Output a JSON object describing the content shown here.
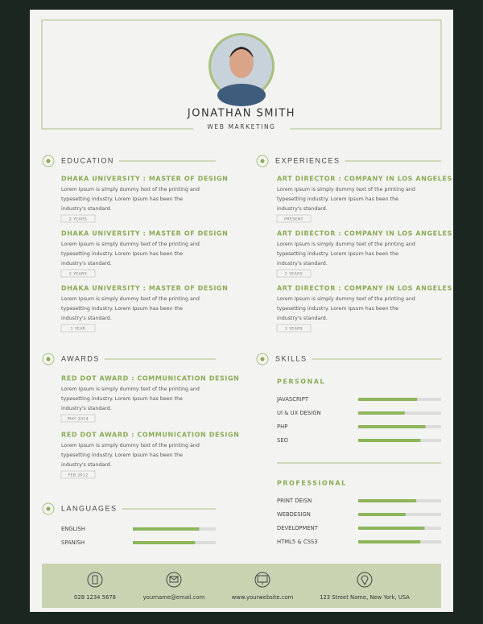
{
  "header": {
    "name": "JONATHAN SMITH",
    "title": "WEB MARKETING"
  },
  "education": {
    "heading": "EDUCATION",
    "items": [
      {
        "title": "DHAKA UNIVERSITY : MASTER OF DESIGN",
        "lines": [
          "Lorem Ipsum is simply dummy text of the printing and",
          "typesetting industry. Lorem Ipsum has been the",
          "industry's standard."
        ],
        "tag": "2 YEARS"
      },
      {
        "title": "DHAKA UNIVERSITY : MASTER OF DESIGN",
        "lines": [
          "Lorem Ipsum is simply dummy text of the printing and",
          "typesetting industry. Lorem Ipsum has been the",
          "industry's standard."
        ],
        "tag": "2 YEARS"
      },
      {
        "title": "DHAKA UNIVERSITY : MASTER OF DESIGN",
        "lines": [
          "Lorem Ipsum is simply dummy text of the printing and",
          "typesetting industry. Lorem Ipsum has been the",
          "industry's standard."
        ],
        "tag": "1 YEAR"
      }
    ]
  },
  "experiences": {
    "heading": "EXPERIENCES",
    "items": [
      {
        "title": "ART DIRECTOR : COMPANY IN LOS ANGELES",
        "lines": [
          "Lorem Ipsum is simply dummy text of the printing and",
          "typesetting industry. Lorem Ipsum has been the",
          "industry's standard."
        ],
        "tag": "PRESENT"
      },
      {
        "title": "ART DIRECTOR : COMPANY IN LOS ANGELES",
        "lines": [
          "Lorem Ipsum is simply dummy text of the printing and",
          "typesetting industry. Lorem Ipsum has been the",
          "industry's standard."
        ],
        "tag": "2 YEARS"
      },
      {
        "title": "ART DIRECTOR : COMPANY IN LOS ANGELES",
        "lines": [
          "Lorem Ipsum is simply dummy text of the printing and",
          "typesetting industry. Lorem Ipsum has been the",
          "industry's standard."
        ],
        "tag": "3 YEARS"
      }
    ]
  },
  "awards": {
    "heading": "AWARDS",
    "items": [
      {
        "title": "RED DOT AWARD : COMMUNICATION DESIGN",
        "lines": [
          "Lorem Ipsum is simply dummy text of the printing and",
          "typesetting industry. Lorem Ipsum has been the",
          "industry's standard."
        ],
        "tag": "MAY 2014"
      },
      {
        "title": "RED DOT AWARD : COMMUNICATION DESIGN",
        "lines": [
          "Lorem Ipsum is simply dummy text of the printing and",
          "typesetting industry. Lorem Ipsum has been the",
          "industry's standard."
        ],
        "tag": "FEB 2012"
      }
    ]
  },
  "languages": {
    "heading": "LANGUAGES",
    "items": [
      {
        "name": "ENGLISH",
        "level": 80
      },
      {
        "name": "SPANISH",
        "level": 75
      }
    ]
  },
  "skills": {
    "heading": "SKILLS",
    "personal": {
      "heading": "PERSONAL",
      "items": [
        {
          "name": "JAVASCRIPT",
          "level": 71
        },
        {
          "name": "UI & UX DESIGN",
          "level": 56
        },
        {
          "name": "PHP",
          "level": 81
        },
        {
          "name": "SEO",
          "level": 75
        }
      ]
    },
    "professional": {
      "heading": "PROFESSIONAL",
      "items": [
        {
          "name": "PRINT DEISN",
          "level": 70
        },
        {
          "name": "WEBDESIGN",
          "level": 57
        },
        {
          "name": "DEVELOPMENT",
          "level": 80
        },
        {
          "name": "HTML5 & CSS3",
          "level": 75
        }
      ]
    }
  },
  "footer": {
    "phone": "028 1234 5678",
    "email": "yourname@email.com",
    "website": "www.yourwebsite.com",
    "address": "123 Street Name, New York, USA"
  }
}
